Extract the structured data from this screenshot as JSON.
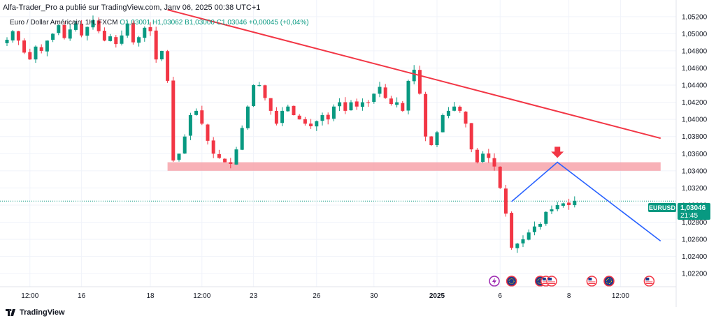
{
  "header": {
    "publisher_line": "Alfa-Trader_Pro a publié sur TradingView.com, Janv 06, 2025 00:38 UTC+1"
  },
  "legend": {
    "symbol": "Euro / Dollar Américain, 1H, FXCM",
    "open": "O1,03001",
    "high": "H1,03062",
    "low": "B1,03000",
    "close": "C1,03046",
    "change": "+0,00045 (+0,04%)"
  },
  "price_label": {
    "symbol": "EURUSD",
    "price": "1,03046",
    "countdown": "21:45"
  },
  "footer": {
    "brand": "TradingView"
  },
  "colors": {
    "up": "#089981",
    "down": "#f23645",
    "trendline": "#f23645",
    "projection": "#2962ff",
    "zone": "#f7a3aa",
    "price_line": "#089981"
  },
  "chart_data": {
    "type": "candlestick",
    "symbol": "Euro / Dollar Américain",
    "timeframe": "1H",
    "y_ticks": [
      "1,05200",
      "1,05000",
      "1,04800",
      "1,04600",
      "1,04400",
      "1,04200",
      "1,04000",
      "1,03800",
      "1,03600",
      "1,03400",
      "1,03200",
      "1,03000",
      "1,02800",
      "1,02600",
      "1,02400",
      "1,02200"
    ],
    "ylim": [
      1.0212,
      1.0528
    ],
    "x_ticks": [
      {
        "label": "12:00",
        "bar": 4,
        "bold": false
      },
      {
        "label": "16",
        "bar": 13,
        "bold": false
      },
      {
        "label": "18",
        "bar": 25,
        "bold": false
      },
      {
        "label": "12:00",
        "bar": 34,
        "bold": false
      },
      {
        "label": "23",
        "bar": 43,
        "bold": false
      },
      {
        "label": "26",
        "bar": 54,
        "bold": false
      },
      {
        "label": "30",
        "bar": 64,
        "bold": false
      },
      {
        "label": "2025",
        "bar": 75,
        "bold": true
      },
      {
        "label": "6",
        "bar": 86,
        "bold": false
      },
      {
        "label": "8",
        "bar": 98,
        "bold": false
      },
      {
        "label": "12:00",
        "bar": 107,
        "bold": false
      }
    ],
    "close_path": [
      1.0493,
      1.0503,
      1.0492,
      1.0478,
      1.047,
      1.0485,
      1.048,
      1.0492,
      1.05,
      1.051,
      1.0495,
      1.0505,
      1.0512,
      1.0498,
      1.0508,
      1.0516,
      1.0503,
      1.0492,
      1.0497,
      1.0488,
      1.0498,
      1.0512,
      1.049,
      1.0496,
      1.0507,
      1.0503,
      1.047,
      1.048,
      1.0445,
      1.0352,
      1.036,
      1.038,
      1.0405,
      1.041,
      1.0395,
      1.0375,
      1.036,
      1.0355,
      1.035,
      1.0348,
      1.0365,
      1.039,
      1.0415,
      1.044,
      1.044,
      1.0425,
      1.041,
      1.0395,
      1.041,
      1.0415,
      1.0405,
      1.04,
      1.0395,
      1.0392,
      1.0398,
      1.0405,
      1.04,
      1.0415,
      1.042,
      1.041,
      1.042,
      1.0415,
      1.042,
      1.042,
      1.043,
      1.0438,
      1.0425,
      1.0418,
      1.042,
      1.041,
      1.0445,
      1.0458,
      1.043,
      1.038,
      1.037,
      1.0385,
      1.0405,
      1.041,
      1.0415,
      1.041,
      1.0395,
      1.0365,
      1.035,
      1.036,
      1.0355,
      1.0345,
      1.032,
      1.029,
      1.025,
      1.0255,
      1.026,
      1.0268,
      1.0275,
      1.0278,
      1.0292,
      1.0295,
      1.03,
      1.0302,
      1.03,
      1.0305
    ],
    "trendline": {
      "from": {
        "bar": 28,
        "price": 1.0528
      },
      "to": {
        "bar": 114,
        "price": 1.0378
      }
    },
    "resistance_zone": {
      "bar_from": 28,
      "bar_to": 114,
      "price_top": 1.035,
      "price_bottom": 1.034
    },
    "projection": [
      {
        "bar": 88,
        "price": 1.0304
      },
      {
        "bar": 96,
        "price": 1.035
      },
      {
        "bar": 114,
        "price": 1.0258
      }
    ],
    "arrow": {
      "bar": 96,
      "price": 1.0355
    },
    "current_price": 1.03046,
    "events": [
      {
        "bar": 85,
        "kind": "lightning"
      },
      {
        "bar": 88,
        "kind": "eu"
      },
      {
        "bar": 93,
        "kind": "eu"
      },
      {
        "bar": 94,
        "kind": "us"
      },
      {
        "bar": 95,
        "kind": "us"
      },
      {
        "bar": 102,
        "kind": "us"
      },
      {
        "bar": 105,
        "kind": "eu"
      },
      {
        "bar": 112,
        "kind": "us"
      }
    ]
  }
}
